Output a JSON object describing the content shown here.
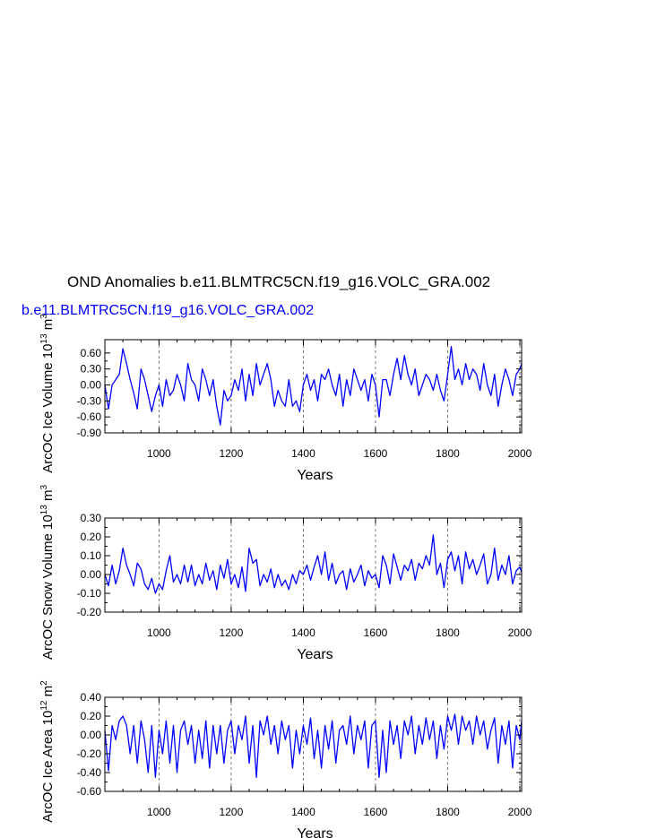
{
  "header": {
    "title": "OND Anomalies b.e11.BLMTRC5CN.f19_g16.VOLC_GRA.002",
    "subtitle": "b.e11.BLMTRC5CN.f19_g16.VOLC_GRA.002"
  },
  "colors": {
    "series": "#0000ff",
    "axis": "#000000",
    "grid": "#555555",
    "subtitle": "#0000ff"
  },
  "chart_data": [
    {
      "type": "line",
      "id": "ice-volume",
      "title": "",
      "xlabel": "Years",
      "ylabel_main": "ArcOC Ice Volume 10",
      "ylabel_sup1": "13",
      "ylabel_unit": " m",
      "ylabel_sup2": "3",
      "xlim": [
        850,
        2005
      ],
      "ylim": [
        -0.9,
        0.85
      ],
      "yticks": [
        -0.9,
        -0.6,
        -0.3,
        0.0,
        0.3,
        0.6
      ],
      "ytick_labels": [
        "-0.90",
        "-0.60",
        "-0.30",
        "0.00",
        "0.30",
        "0.60"
      ],
      "xticks": [
        1000,
        1200,
        1400,
        1600,
        1800,
        2000
      ],
      "xtick_labels": [
        "1000",
        "1200",
        "1400",
        "1600",
        "1800",
        "2000"
      ],
      "series": [
        {
          "name": "b.e11.BLMTRC5CN.f19_g16.VOLC_GRA.002",
          "x": [
            850,
            860,
            870,
            880,
            890,
            900,
            910,
            920,
            930,
            940,
            950,
            960,
            970,
            980,
            990,
            1000,
            1010,
            1020,
            1030,
            1040,
            1050,
            1060,
            1070,
            1080,
            1090,
            1100,
            1110,
            1120,
            1130,
            1140,
            1150,
            1160,
            1170,
            1180,
            1190,
            1200,
            1210,
            1220,
            1230,
            1240,
            1250,
            1260,
            1270,
            1280,
            1290,
            1300,
            1310,
            1320,
            1330,
            1340,
            1350,
            1360,
            1370,
            1380,
            1390,
            1400,
            1410,
            1420,
            1430,
            1440,
            1450,
            1460,
            1470,
            1480,
            1490,
            1500,
            1510,
            1520,
            1530,
            1540,
            1550,
            1560,
            1570,
            1580,
            1590,
            1600,
            1610,
            1620,
            1630,
            1640,
            1650,
            1660,
            1670,
            1680,
            1690,
            1700,
            1710,
            1720,
            1730,
            1740,
            1750,
            1760,
            1770,
            1780,
            1790,
            1800,
            1810,
            1820,
            1830,
            1840,
            1850,
            1860,
            1870,
            1880,
            1890,
            1900,
            1910,
            1920,
            1930,
            1940,
            1950,
            1960,
            1970,
            1980,
            1990,
            2000,
            2005
          ],
          "values": [
            0.0,
            -0.45,
            0.0,
            0.1,
            0.2,
            0.68,
            0.4,
            0.1,
            -0.15,
            -0.45,
            0.3,
            0.1,
            -0.2,
            -0.5,
            -0.2,
            0.0,
            -0.4,
            0.1,
            -0.2,
            -0.1,
            0.2,
            0.0,
            -0.3,
            0.4,
            0.1,
            0.0,
            -0.3,
            0.3,
            0.1,
            -0.2,
            0.1,
            -0.4,
            -0.75,
            -0.1,
            -0.3,
            -0.2,
            0.1,
            -0.1,
            0.3,
            -0.3,
            0.2,
            -0.2,
            0.4,
            0.0,
            0.2,
            0.4,
            0.1,
            -0.4,
            -0.1,
            -0.3,
            -0.4,
            0.1,
            -0.4,
            -0.3,
            -0.5,
            0.0,
            0.2,
            -0.1,
            0.1,
            -0.3,
            0.2,
            0.1,
            0.3,
            0.0,
            -0.2,
            0.2,
            -0.4,
            0.1,
            -0.2,
            0.3,
            0.1,
            -0.1,
            0.1,
            -0.3,
            0.2,
            0.0,
            -0.6,
            0.1,
            0.1,
            -0.2,
            0.2,
            0.5,
            0.1,
            0.55,
            0.2,
            0.0,
            0.3,
            -0.2,
            0.0,
            0.2,
            0.1,
            -0.1,
            0.2,
            -0.1,
            -0.3,
            0.2,
            0.72,
            0.1,
            0.3,
            0.0,
            0.4,
            0.1,
            0.3,
            0.2,
            -0.1,
            0.4,
            0.0,
            -0.2,
            0.2,
            -0.4,
            0.0,
            0.3,
            0.1,
            -0.2,
            0.2,
            0.3,
            0.4
          ]
        }
      ]
    },
    {
      "type": "line",
      "id": "snow-volume",
      "title": "",
      "xlabel": "Years",
      "ylabel_main": "ArcOC Snow Volume 10",
      "ylabel_sup1": "13",
      "ylabel_unit": " m",
      "ylabel_sup2": "3",
      "xlim": [
        850,
        2005
      ],
      "ylim": [
        -0.2,
        0.3
      ],
      "yticks": [
        -0.2,
        -0.1,
        0.0,
        0.1,
        0.2,
        0.3
      ],
      "ytick_labels": [
        "-0.20",
        "-0.10",
        "0.00",
        "0.10",
        "0.20",
        "0.30"
      ],
      "xticks": [
        1000,
        1200,
        1400,
        1600,
        1800,
        2000
      ],
      "xtick_labels": [
        "1000",
        "1200",
        "1400",
        "1600",
        "1800",
        "2000"
      ],
      "series": [
        {
          "name": "b.e11.BLMTRC5CN.f19_g16.VOLC_GRA.002",
          "x": [
            850,
            860,
            870,
            880,
            890,
            900,
            910,
            920,
            930,
            940,
            950,
            960,
            970,
            980,
            990,
            1000,
            1010,
            1020,
            1030,
            1040,
            1050,
            1060,
            1070,
            1080,
            1090,
            1100,
            1110,
            1120,
            1130,
            1140,
            1150,
            1160,
            1170,
            1180,
            1190,
            1200,
            1210,
            1220,
            1230,
            1240,
            1250,
            1260,
            1270,
            1280,
            1290,
            1300,
            1310,
            1320,
            1330,
            1340,
            1350,
            1360,
            1370,
            1380,
            1390,
            1400,
            1410,
            1420,
            1430,
            1440,
            1450,
            1460,
            1470,
            1480,
            1490,
            1500,
            1510,
            1520,
            1530,
            1540,
            1550,
            1560,
            1570,
            1580,
            1590,
            1600,
            1610,
            1620,
            1630,
            1640,
            1650,
            1660,
            1670,
            1680,
            1690,
            1700,
            1710,
            1720,
            1730,
            1740,
            1750,
            1760,
            1770,
            1780,
            1790,
            1800,
            1810,
            1820,
            1830,
            1840,
            1850,
            1860,
            1870,
            1880,
            1890,
            1900,
            1910,
            1920,
            1930,
            1940,
            1950,
            1960,
            1970,
            1980,
            1990,
            2000,
            2005
          ],
          "values": [
            0.0,
            -0.06,
            0.05,
            -0.05,
            0.02,
            0.14,
            0.05,
            0.0,
            -0.06,
            0.06,
            0.03,
            -0.05,
            -0.08,
            -0.02,
            -0.1,
            -0.05,
            -0.08,
            0.02,
            0.1,
            -0.04,
            0.0,
            -0.05,
            0.05,
            -0.04,
            0.05,
            -0.06,
            0.0,
            -0.05,
            0.06,
            -0.03,
            0.02,
            -0.08,
            0.05,
            -0.02,
            0.08,
            -0.05,
            0.0,
            -0.07,
            0.04,
            -0.09,
            0.14,
            0.06,
            0.08,
            -0.06,
            0.0,
            -0.04,
            0.03,
            -0.07,
            0.0,
            -0.06,
            -0.03,
            -0.08,
            0.0,
            -0.05,
            0.02,
            0.0,
            0.05,
            -0.03,
            0.04,
            0.1,
            0.0,
            0.12,
            -0.03,
            0.06,
            -0.05,
            0.0,
            0.02,
            -0.08,
            0.03,
            -0.04,
            0.0,
            0.05,
            -0.06,
            0.02,
            -0.02,
            0.0,
            -0.07,
            0.1,
            0.05,
            -0.05,
            0.11,
            0.04,
            -0.03,
            0.05,
            0.02,
            0.08,
            -0.03,
            0.06,
            0.03,
            0.1,
            0.05,
            0.21,
            0.0,
            0.06,
            -0.07,
            0.08,
            0.12,
            0.02,
            0.1,
            -0.05,
            0.12,
            0.03,
            0.08,
            0.0,
            0.05,
            0.11,
            -0.05,
            0.0,
            0.14,
            -0.03,
            0.05,
            0.0,
            0.1,
            -0.05,
            0.02,
            0.04,
            0.01
          ]
        }
      ]
    },
    {
      "type": "line",
      "id": "ice-area",
      "title": "",
      "xlabel": "Years",
      "ylabel_main": "ArcOC Ice Area 10",
      "ylabel_sup1": "12",
      "ylabel_unit": " m",
      "ylabel_sup2": "2",
      "xlim": [
        850,
        2005
      ],
      "ylim": [
        -0.6,
        0.4
      ],
      "yticks": [
        -0.6,
        -0.4,
        -0.2,
        0.0,
        0.2,
        0.4
      ],
      "ytick_labels": [
        "-0.60",
        "-0.40",
        "-0.20",
        "0.00",
        "0.20",
        "0.40"
      ],
      "xticks": [
        1000,
        1200,
        1400,
        1600,
        1800,
        2000
      ],
      "xtick_labels": [
        "1000",
        "1200",
        "1400",
        "1600",
        "1800",
        "2000"
      ],
      "series": [
        {
          "name": "b.e11.BLMTRC5CN.f19_g16.VOLC_GRA.002",
          "x": [
            850,
            860,
            870,
            880,
            890,
            900,
            910,
            920,
            930,
            940,
            950,
            960,
            970,
            980,
            990,
            1000,
            1010,
            1020,
            1030,
            1040,
            1050,
            1060,
            1070,
            1080,
            1090,
            1100,
            1110,
            1120,
            1130,
            1140,
            1150,
            1160,
            1170,
            1180,
            1190,
            1200,
            1210,
            1220,
            1230,
            1240,
            1250,
            1260,
            1270,
            1280,
            1290,
            1300,
            1310,
            1320,
            1330,
            1340,
            1350,
            1360,
            1370,
            1380,
            1390,
            1400,
            1410,
            1420,
            1430,
            1440,
            1450,
            1460,
            1470,
            1480,
            1490,
            1500,
            1510,
            1520,
            1530,
            1540,
            1550,
            1560,
            1570,
            1580,
            1590,
            1600,
            1610,
            1620,
            1630,
            1640,
            1650,
            1660,
            1670,
            1680,
            1690,
            1700,
            1710,
            1720,
            1730,
            1740,
            1750,
            1760,
            1770,
            1780,
            1790,
            1800,
            1810,
            1820,
            1830,
            1840,
            1850,
            1860,
            1870,
            1880,
            1890,
            1900,
            1910,
            1920,
            1930,
            1940,
            1950,
            1960,
            1970,
            1980,
            1990,
            2000,
            2005
          ],
          "values": [
            0.05,
            -0.38,
            0.1,
            -0.05,
            0.15,
            0.2,
            0.1,
            -0.2,
            0.1,
            -0.3,
            0.15,
            -0.05,
            -0.4,
            0.1,
            -0.45,
            0.05,
            -0.2,
            0.15,
            -0.3,
            0.1,
            -0.4,
            0.05,
            0.15,
            -0.1,
            0.1,
            -0.3,
            0.05,
            -0.25,
            0.15,
            -0.35,
            0.1,
            -0.2,
            0.1,
            -0.3,
            0.05,
            0.15,
            -0.2,
            0.1,
            -0.05,
            0.2,
            -0.3,
            0.1,
            -0.45,
            0.15,
            0.0,
            0.2,
            -0.1,
            0.1,
            -0.2,
            0.15,
            -0.05,
            0.1,
            -0.35,
            0.05,
            -0.2,
            0.1,
            -0.1,
            0.18,
            -0.25,
            0.05,
            -0.35,
            0.1,
            -0.15,
            0.15,
            -0.3,
            0.05,
            0.1,
            -0.1,
            0.2,
            -0.2,
            0.1,
            -0.05,
            0.15,
            -0.35,
            0.1,
            0.15,
            -0.45,
            0.05,
            -0.4,
            0.15,
            -0.1,
            0.1,
            -0.25,
            0.15,
            0.0,
            0.2,
            -0.2,
            0.1,
            -0.1,
            0.18,
            -0.05,
            0.15,
            -0.25,
            0.1,
            -0.15,
            0.2,
            0.05,
            0.22,
            -0.1,
            0.2,
            0.05,
            0.15,
            -0.1,
            0.2,
            0.0,
            0.15,
            -0.15,
            0.05,
            0.18,
            -0.3,
            0.1,
            -0.1,
            0.15,
            -0.35,
            0.1,
            -0.05,
            0.15
          ]
        }
      ]
    }
  ]
}
